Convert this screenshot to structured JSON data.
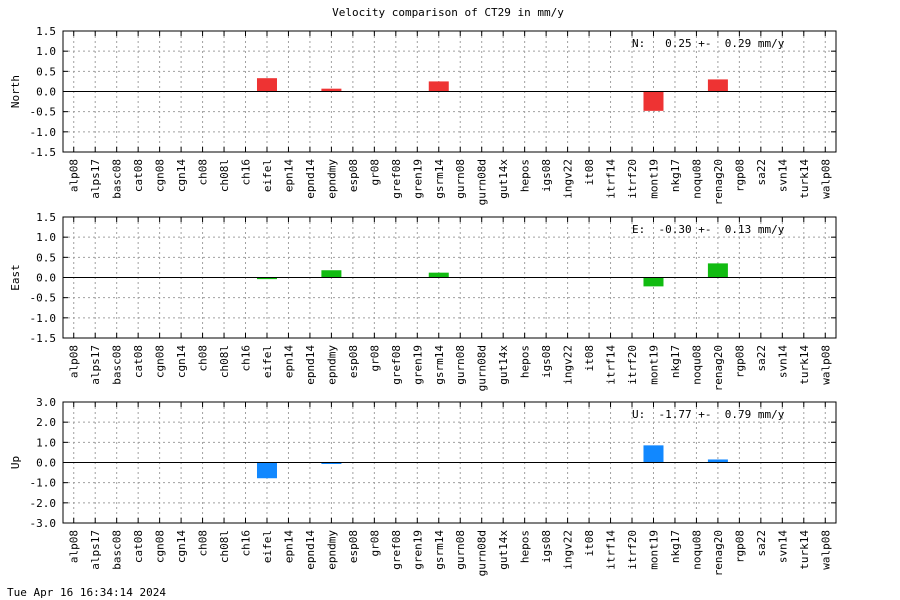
{
  "title": "Velocity comparison of CT29 in mm/y",
  "footer": "Tue Apr 16 16:34:14 2024",
  "chart_data": {
    "type": "bar",
    "grid": true,
    "categories": [
      "alp08",
      "alps17",
      "basc08",
      "cat08",
      "cgn08",
      "cgn14",
      "ch08",
      "ch08l",
      "ch16",
      "eifel",
      "epn14",
      "epnd14",
      "epndmy",
      "esp08",
      "gr08",
      "gref08",
      "gren19",
      "gsrm14",
      "gurn08",
      "gurn08d",
      "gut14x",
      "hepos",
      "igs08",
      "ingv22",
      "it08",
      "itrf14",
      "itrf20",
      "mont19",
      "nkg17",
      "noqu08",
      "renag20",
      "rgp08",
      "sa22",
      "svn14",
      "turk14",
      "walp08"
    ],
    "panels": [
      {
        "ylabel": "North",
        "color": "#ee3333",
        "ylim": [
          -1.5,
          1.5
        ],
        "yticks": [
          "1.5",
          "1.0",
          "0.5",
          "0.0",
          "-0.5",
          "-1.0",
          "-1.5"
        ],
        "annotation": "N:   0.25 +-  0.29 mm/y",
        "values": [
          null,
          null,
          null,
          null,
          null,
          null,
          null,
          null,
          null,
          0.33,
          null,
          null,
          0.07,
          null,
          null,
          null,
          null,
          0.25,
          null,
          null,
          null,
          null,
          null,
          null,
          null,
          null,
          null,
          -0.48,
          null,
          null,
          0.3,
          null,
          null,
          null,
          null,
          null
        ]
      },
      {
        "ylabel": "East",
        "color": "#11bb11",
        "ylim": [
          -1.5,
          1.5
        ],
        "yticks": [
          "1.5",
          "1.0",
          "0.5",
          "0.0",
          "-0.5",
          "-1.0",
          "-1.5"
        ],
        "annotation": "E:  -0.30 +-  0.13 mm/y",
        "values": [
          null,
          null,
          null,
          null,
          null,
          null,
          null,
          null,
          null,
          -0.04,
          null,
          null,
          0.18,
          null,
          null,
          null,
          null,
          0.12,
          null,
          null,
          null,
          null,
          null,
          null,
          null,
          null,
          null,
          -0.22,
          null,
          null,
          0.35,
          null,
          null,
          null,
          null,
          null
        ]
      },
      {
        "ylabel": "Up",
        "color": "#1188ff",
        "ylim": [
          -3.0,
          3.0
        ],
        "yticks": [
          "3.0",
          "2.0",
          "1.0",
          "0.0",
          "-1.0",
          "-2.0",
          "-3.0"
        ],
        "annotation": "U:  -1.77 +-  0.79 mm/y",
        "values": [
          null,
          null,
          null,
          null,
          null,
          null,
          null,
          null,
          null,
          -0.78,
          null,
          null,
          -0.07,
          null,
          null,
          null,
          null,
          null,
          null,
          null,
          null,
          null,
          null,
          null,
          null,
          null,
          null,
          0.85,
          null,
          null,
          0.15,
          null,
          null,
          null,
          null,
          null
        ]
      }
    ]
  }
}
